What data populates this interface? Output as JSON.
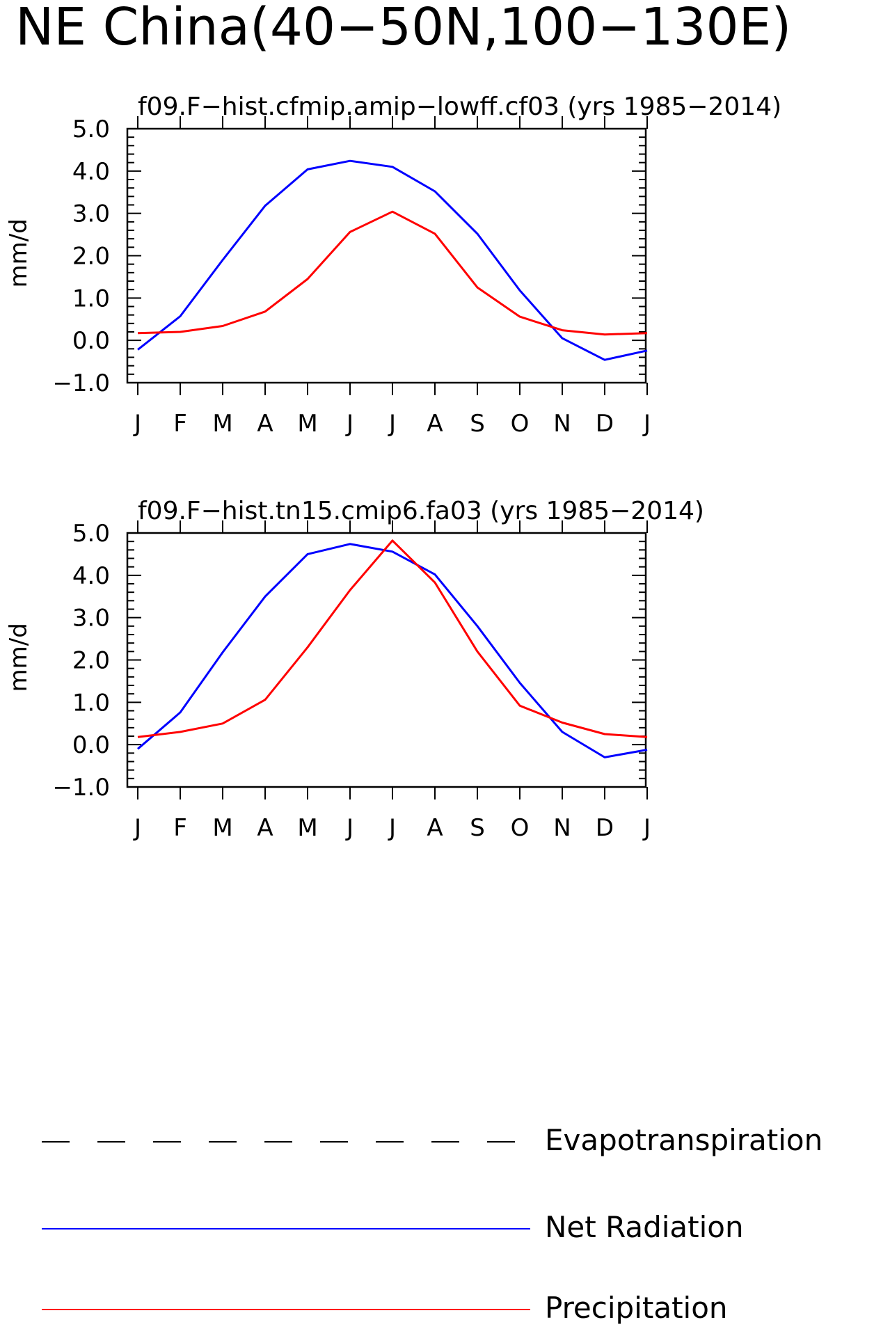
{
  "page_title": "NE China(40−50N,100−130E)",
  "colors": {
    "net_radiation": "#0000ff",
    "precipitation": "#ff0000",
    "axis": "#000000"
  },
  "chart_data": [
    {
      "type": "line",
      "title": "f09.F−hist.cfmip.amip−lowff.cf03 (yrs 1985−2014)",
      "ylabel": "mm/d",
      "xlabel": "",
      "ylim": [
        -1.0,
        5.0
      ],
      "yticks": [
        "5.0",
        "4.0",
        "3.0",
        "2.0",
        "1.0",
        "0.0",
        "−1.0"
      ],
      "categories": [
        "J",
        "F",
        "M",
        "A",
        "M",
        "J",
        "J",
        "A",
        "S",
        "O",
        "N",
        "D",
        "J"
      ],
      "series": [
        {
          "name": "Net Radiation",
          "color": "#0000ff",
          "values": [
            -0.22,
            0.57,
            1.9,
            3.18,
            4.04,
            4.24,
            4.1,
            3.52,
            2.52,
            1.18,
            0.05,
            -0.46,
            -0.24
          ]
        },
        {
          "name": "Precipitation",
          "color": "#ff0000",
          "values": [
            0.17,
            0.2,
            0.34,
            0.68,
            1.45,
            2.56,
            3.04,
            2.52,
            1.25,
            0.56,
            0.24,
            0.14,
            0.17
          ]
        }
      ]
    },
    {
      "type": "line",
      "title": "f09.F−hist.tn15.cmip6.fa03 (yrs 1985−2014)",
      "ylabel": "mm/d",
      "xlabel": "",
      "ylim": [
        -1.0,
        5.0
      ],
      "yticks": [
        "5.0",
        "4.0",
        "3.0",
        "2.0",
        "1.0",
        "0.0",
        "−1.0"
      ],
      "categories": [
        "J",
        "F",
        "M",
        "A",
        "M",
        "J",
        "J",
        "A",
        "S",
        "O",
        "N",
        "D",
        "J"
      ],
      "series": [
        {
          "name": "Net Radiation",
          "color": "#0000ff",
          "values": [
            -0.1,
            0.76,
            2.18,
            3.5,
            4.5,
            4.74,
            4.56,
            4.02,
            2.8,
            1.46,
            0.3,
            -0.3,
            -0.12
          ]
        },
        {
          "name": "Precipitation",
          "color": "#ff0000",
          "values": [
            0.18,
            0.3,
            0.5,
            1.06,
            2.3,
            3.65,
            4.82,
            3.83,
            2.2,
            0.92,
            0.52,
            0.25,
            0.18
          ]
        }
      ]
    }
  ],
  "legend": [
    {
      "label": "Evapotranspiration",
      "style": "dashed",
      "color": "#000000"
    },
    {
      "label": "Net Radiation",
      "style": "solid",
      "color": "#0000ff"
    },
    {
      "label": "Precipitation",
      "style": "solid",
      "color": "#ff0000"
    }
  ]
}
